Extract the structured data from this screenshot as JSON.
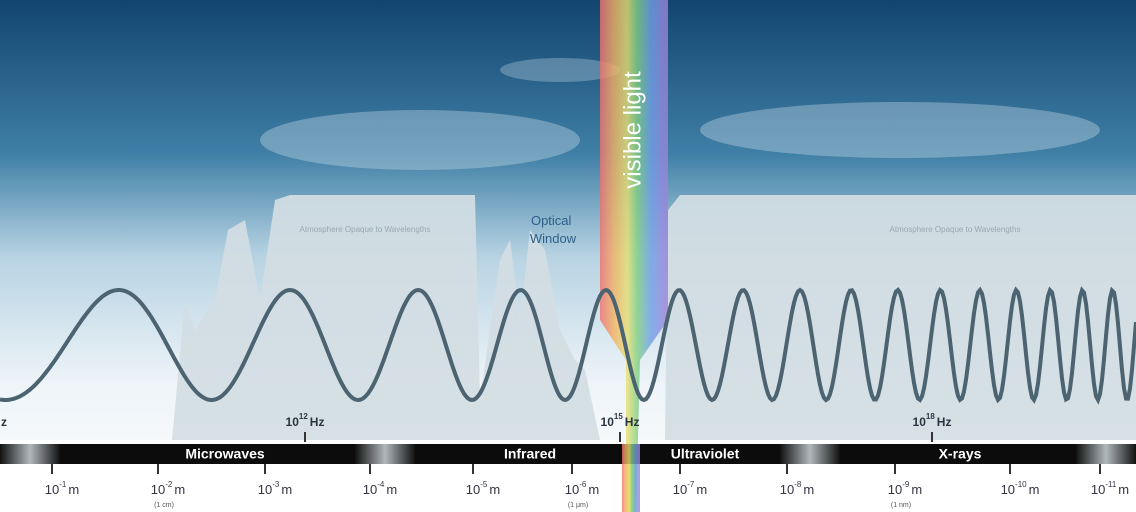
{
  "title": "visible light",
  "optical_window": "Optical Window",
  "opaque_labels": [
    "Atmosphere Opaque to Wavelengths",
    "Atmosphere Opaque to Wavelengths"
  ],
  "frequencies": [
    {
      "edge": "z"
    },
    {
      "mantissa": "10",
      "exponent": "12",
      "unit": "Hz"
    },
    {
      "mantissa": "10",
      "exponent": "15",
      "unit": "Hz"
    },
    {
      "mantissa": "10",
      "exponent": "18",
      "unit": "Hz"
    }
  ],
  "bands": [
    "Microwaves",
    "Infrared",
    "Ultraviolet",
    "X-rays"
  ],
  "wavelengths": [
    {
      "mantissa": "10",
      "exponent": "-1",
      "unit": "m"
    },
    {
      "mantissa": "10",
      "exponent": "-2",
      "unit": "m",
      "note": "(1 cm)"
    },
    {
      "mantissa": "10",
      "exponent": "-3",
      "unit": "m"
    },
    {
      "mantissa": "10",
      "exponent": "-4",
      "unit": "m"
    },
    {
      "mantissa": "10",
      "exponent": "-5",
      "unit": "m"
    },
    {
      "mantissa": "10",
      "exponent": "-6",
      "unit": "m",
      "note": "(1 μm)"
    },
    {
      "mantissa": "10",
      "exponent": "-7",
      "unit": "m"
    },
    {
      "mantissa": "10",
      "exponent": "-8",
      "unit": "m"
    },
    {
      "mantissa": "10",
      "exponent": "-9",
      "unit": "m",
      "note": "(1 nm)"
    },
    {
      "mantissa": "10",
      "exponent": "-10",
      "unit": "m"
    },
    {
      "mantissa": "10",
      "exponent": "-11",
      "unit": "m"
    }
  ]
}
